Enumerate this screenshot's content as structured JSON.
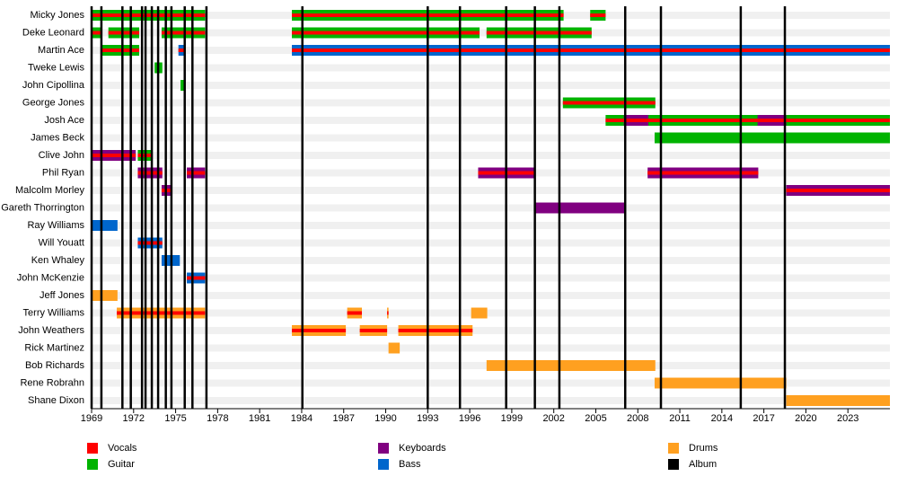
{
  "chart_data": {
    "type": "timeline",
    "members": [
      "Micky Jones",
      "Deke Leonard",
      "Martin Ace",
      "Tweke Lewis",
      "John Cipollina",
      "George Jones",
      "Josh Ace",
      "James Beck",
      "Clive John",
      "Phil Ryan",
      "Malcolm Morley",
      "Gareth Thorrington",
      "Ray Williams",
      "Will Youatt",
      "Ken Whaley",
      "John McKenzie",
      "Jeff Jones",
      "Terry Williams",
      "John Weathers",
      "Rick Martinez",
      "Bob Richards",
      "Rene Robrahn",
      "Shane Dixon"
    ],
    "legend": [
      {
        "name": "Vocals",
        "color": "#ff0000"
      },
      {
        "name": "Guitar",
        "color": "#00b300"
      },
      {
        "name": "Keyboards",
        "color": "#800080"
      },
      {
        "name": "Bass",
        "color": "#0066cc"
      },
      {
        "name": "Drums",
        "color": "#ffa020"
      },
      {
        "name": "Album",
        "color": "#000000"
      }
    ],
    "periods": [
      {
        "member": 0,
        "start": 1969.0,
        "end": 1977.1,
        "roles": [
          1,
          0
        ]
      },
      {
        "member": 0,
        "start": 1983.3,
        "end": 2002.7,
        "roles": [
          1,
          0
        ]
      },
      {
        "member": 0,
        "start": 2004.6,
        "end": 2005.7,
        "roles": [
          1,
          0
        ]
      },
      {
        "member": 1,
        "start": 1969.0,
        "end": 1969.7,
        "roles": [
          1,
          0
        ]
      },
      {
        "member": 1,
        "start": 1970.2,
        "end": 1972.4,
        "roles": [
          1,
          0
        ]
      },
      {
        "member": 1,
        "start": 1974.0,
        "end": 1977.1,
        "roles": [
          1,
          0
        ]
      },
      {
        "member": 1,
        "start": 1983.3,
        "end": 1996.7,
        "roles": [
          1,
          0
        ]
      },
      {
        "member": 1,
        "start": 1997.2,
        "end": 2004.7,
        "roles": [
          1,
          0
        ]
      },
      {
        "member": 2,
        "start": 1969.7,
        "end": 1972.4,
        "roles": [
          1,
          0
        ]
      },
      {
        "member": 2,
        "start": 1975.2,
        "end": 1975.7,
        "roles": [
          3,
          0
        ]
      },
      {
        "member": 2,
        "start": 1983.3,
        "end": 2026.0,
        "roles": [
          3,
          0
        ]
      },
      {
        "member": 3,
        "start": 1973.5,
        "end": 1974.05,
        "roles": [
          1
        ]
      },
      {
        "member": 4,
        "start": 1975.35,
        "end": 1975.65,
        "roles": [
          1
        ]
      },
      {
        "member": 5,
        "start": 2002.65,
        "end": 2009.25,
        "roles": [
          1,
          0
        ]
      },
      {
        "member": 6,
        "start": 2005.7,
        "end": 2026.0,
        "roles": [
          1,
          0
        ]
      },
      {
        "member": 6,
        "start": 2007.0,
        "end": 2008.75,
        "roles": [
          2,
          0
        ]
      },
      {
        "member": 6,
        "start": 2016.55,
        "end": 2018.6,
        "roles": [
          2,
          0
        ]
      },
      {
        "member": 7,
        "start": 2009.2,
        "end": 2026.0,
        "roles": [
          1
        ]
      },
      {
        "member": 8,
        "start": 1969.0,
        "end": 1972.15,
        "roles": [
          2,
          0
        ]
      },
      {
        "member": 8,
        "start": 1972.3,
        "end": 1973.35,
        "roles": [
          1,
          0
        ]
      },
      {
        "member": 9,
        "start": 1972.3,
        "end": 1974.05,
        "roles": [
          2,
          0
        ]
      },
      {
        "member": 9,
        "start": 1975.8,
        "end": 1977.1,
        "roles": [
          2,
          0
        ]
      },
      {
        "member": 9,
        "start": 1996.6,
        "end": 2000.7,
        "roles": [
          2,
          0
        ]
      },
      {
        "member": 9,
        "start": 2008.7,
        "end": 2016.6,
        "roles": [
          2,
          0
        ]
      },
      {
        "member": 10,
        "start": 1974.0,
        "end": 1974.65,
        "roles": [
          2,
          0
        ]
      },
      {
        "member": 10,
        "start": 2018.6,
        "end": 2026.0,
        "roles": [
          2,
          0
        ]
      },
      {
        "member": 11,
        "start": 2000.7,
        "end": 2007.05,
        "roles": [
          2
        ]
      },
      {
        "member": 12,
        "start": 1969.0,
        "end": 1970.85,
        "roles": [
          3
        ]
      },
      {
        "member": 13,
        "start": 1972.3,
        "end": 1974.05,
        "roles": [
          3,
          0
        ]
      },
      {
        "member": 14,
        "start": 1974.0,
        "end": 1975.3,
        "roles": [
          3
        ]
      },
      {
        "member": 15,
        "start": 1975.8,
        "end": 1977.1,
        "roles": [
          3,
          0
        ]
      },
      {
        "member": 16,
        "start": 1969.0,
        "end": 1970.85,
        "roles": [
          4
        ]
      },
      {
        "member": 17,
        "start": 1970.8,
        "end": 1977.1,
        "roles": [
          4,
          0
        ]
      },
      {
        "member": 17,
        "start": 1987.25,
        "end": 1988.3,
        "roles": [
          4,
          0
        ]
      },
      {
        "member": 17,
        "start": 1990.1,
        "end": 1990.2,
        "roles": [
          4,
          0
        ]
      },
      {
        "member": 17,
        "start": 1996.1,
        "end": 1997.25,
        "roles": [
          4
        ]
      },
      {
        "member": 18,
        "start": 1983.3,
        "end": 1987.15,
        "roles": [
          4,
          0
        ]
      },
      {
        "member": 18,
        "start": 1988.15,
        "end": 1990.1,
        "roles": [
          4,
          0
        ]
      },
      {
        "member": 18,
        "start": 1990.9,
        "end": 1996.2,
        "roles": [
          4,
          0
        ]
      },
      {
        "member": 19,
        "start": 1990.2,
        "end": 1991.0,
        "roles": [
          4
        ]
      },
      {
        "member": 20,
        "start": 1997.2,
        "end": 2009.25,
        "roles": [
          4
        ]
      },
      {
        "member": 21,
        "start": 2009.2,
        "end": 2018.6,
        "roles": [
          4
        ]
      },
      {
        "member": 22,
        "start": 2018.6,
        "end": 2026.0,
        "roles": [
          4
        ]
      }
    ],
    "albums": [
      1969.0,
      1969.7,
      1971.2,
      1971.8,
      1972.6,
      1972.85,
      1973.3,
      1973.75,
      1974.3,
      1974.7,
      1975.65,
      1976.2,
      1977.2,
      1984.05,
      1993.0,
      1995.3,
      1998.6,
      2000.65,
      2002.4,
      2007.1,
      2009.65,
      2015.35,
      2018.5
    ],
    "album_color_index": 5,
    "xlim": [
      1969,
      2026
    ],
    "xticks": [
      1969,
      1972,
      1975,
      1978,
      1981,
      1984,
      1987,
      1990,
      1993,
      1996,
      1999,
      2002,
      2005,
      2008,
      2011,
      2014,
      2017,
      2020,
      2023
    ]
  }
}
